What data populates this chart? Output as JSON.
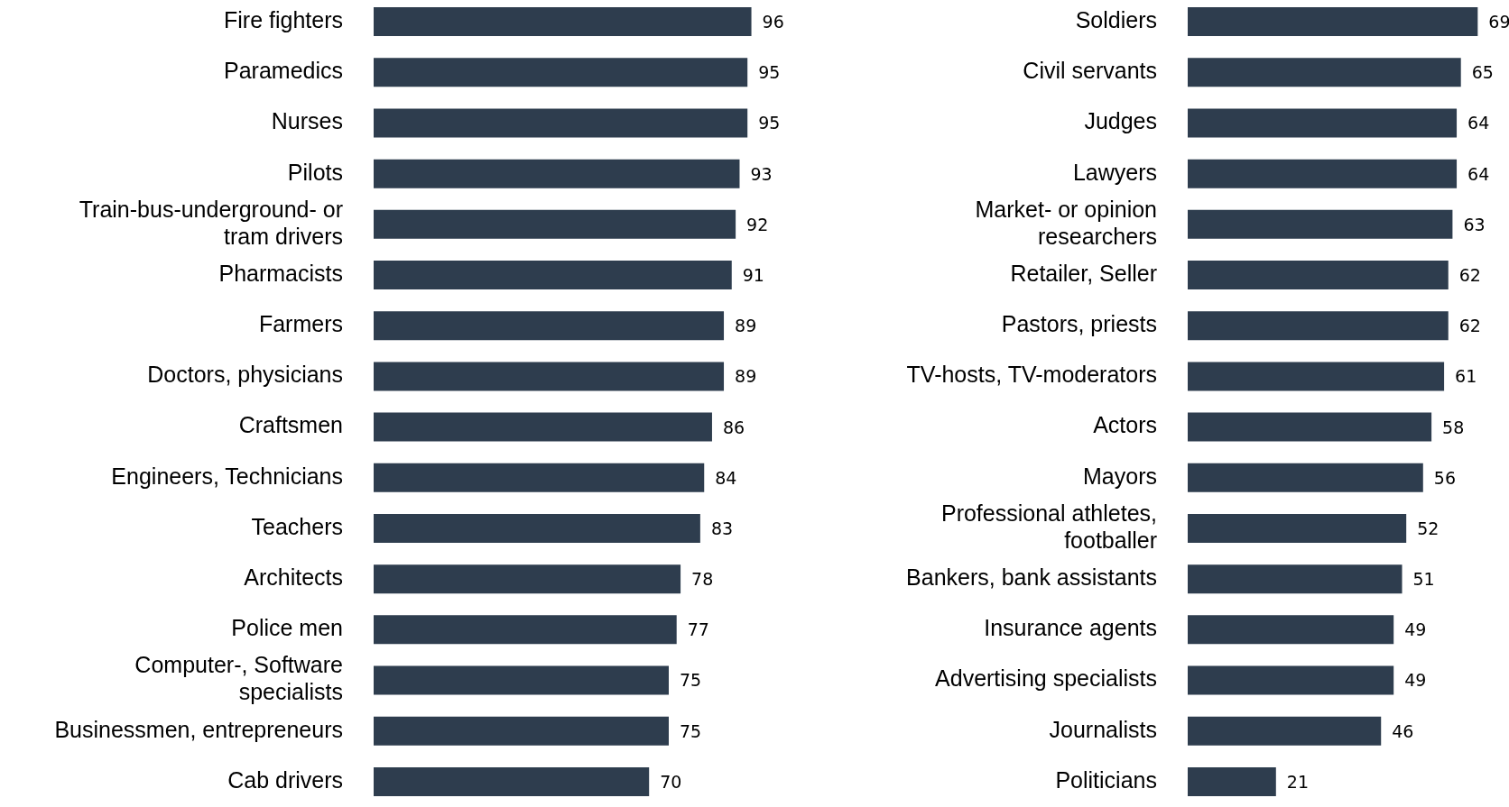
{
  "chart_data": [
    {
      "type": "bar",
      "orientation": "horizontal",
      "categories": [
        "Fire fighters",
        "Paramedics",
        "Nurses",
        "Pilots",
        "Train-bus-underground- or\ntram drivers",
        "Pharmacists",
        "Farmers",
        "Doctors, physicians",
        "Craftsmen",
        "Engineers, Technicians",
        "Teachers",
        "Architects",
        "Police men",
        "Computer-, Software\nspecialists",
        "Businessmen, entrepreneurs",
        "Cab drivers"
      ],
      "values": [
        96,
        95,
        95,
        93,
        92,
        91,
        89,
        89,
        86,
        84,
        83,
        78,
        77,
        75,
        75,
        70
      ],
      "color": "#2e3d4e",
      "data_labels": true
    },
    {
      "type": "bar",
      "orientation": "horizontal",
      "categories": [
        "Soldiers",
        "Civil servants",
        "Judges",
        "Lawyers",
        "Market- or opinion\nresearchers",
        "Retailer, Seller",
        "Pastors, priests",
        "TV-hosts, TV-moderators",
        "Actors",
        "Mayors",
        "Professional athletes,\nfootballer",
        "Bankers, bank assistants",
        "Insurance agents",
        "Advertising specialists",
        "Journalists",
        "Politicians"
      ],
      "values": [
        69,
        65,
        64,
        64,
        63,
        62,
        62,
        61,
        58,
        56,
        52,
        51,
        49,
        49,
        46,
        21
      ],
      "color": "#2e3d4e",
      "data_labels": true
    }
  ]
}
